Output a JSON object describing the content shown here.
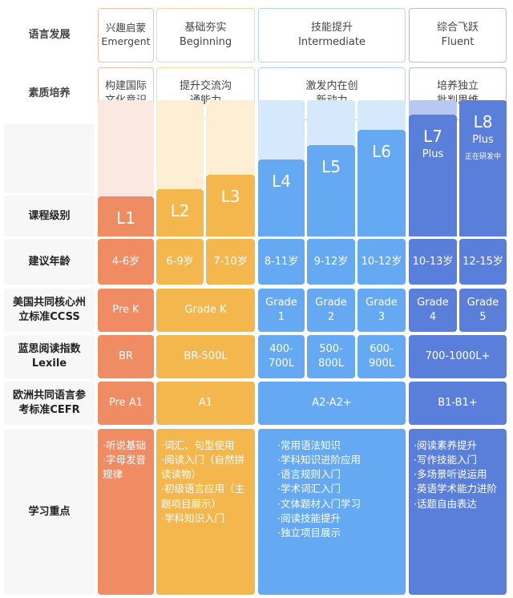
{
  "colors": {
    "orange": "#f08c63",
    "yellow": "#f3b74e",
    "blue": "#65a9f3",
    "darkblue": "#5a7fdb"
  },
  "rows": {
    "language": "语言发展",
    "quality": "素质培养",
    "level": "课程级别",
    "age": "建议年龄",
    "ccss": "美国共同核心州立标准CCSS",
    "lexile": "蓝思阅读指数Lexile",
    "cefr": "欧洲共同语言参考标准CEFR",
    "focus": "学习重点"
  },
  "stages": [
    {
      "cn": "兴趣启蒙",
      "en": "Emergent",
      "quality": "构建国际文化意识"
    },
    {
      "cn": "基础夯实",
      "en": "Beginning",
      "quality": "提升交流沟通能力"
    },
    {
      "cn": "技能提升",
      "en": "Intermediate",
      "quality": "激发内在创新动力"
    },
    {
      "cn": "综合飞跃",
      "en": "Fluent",
      "quality": "培养独立批判思维"
    }
  ],
  "levels": [
    {
      "name": "L1",
      "age": "4-6岁"
    },
    {
      "name": "L2",
      "age": "6-9岁"
    },
    {
      "name": "L3",
      "age": "7-10岁"
    },
    {
      "name": "L4",
      "age": "8-11岁"
    },
    {
      "name": "L5",
      "age": "9-12岁"
    },
    {
      "name": "L6",
      "age": "10-12岁"
    },
    {
      "name": "L7",
      "sub": "Plus",
      "age": "10-13岁"
    },
    {
      "name": "L8",
      "sub": "Plus",
      "note": "正在研发中",
      "age": "12-15岁"
    }
  ],
  "ccss": [
    "Pre K",
    "Grade K",
    "Grade 1",
    "Grade 2",
    "Grade 3",
    "Grade 4",
    "Grade 5"
  ],
  "lexile": [
    "BR",
    "BR-500L",
    "400-700L",
    "500-800L",
    "600-900L",
    "700-1000L+"
  ],
  "cefr": [
    "Pre A1",
    "A1",
    "A2-A2+",
    "B1-B1+"
  ],
  "focus": [
    [
      "·听说基础",
      "·字母发音规律"
    ],
    [
      "·词汇、句型使用",
      "·阅读入门（自然拼读读物）",
      "·初级语言应用（主题项目展示）",
      "·学科知识入门"
    ],
    [
      "·常用语法知识",
      "·学科知识进阶应用",
      "·语言规则入门",
      "·学术词汇入门",
      "·文体题材入门学习",
      "·阅读技能提升",
      "·独立项目展示"
    ],
    [
      "·阅读素养提升",
      "·写作技能入门",
      "·多场景听说运用",
      "·英语学术能力进阶",
      "·话题自由表达"
    ]
  ]
}
